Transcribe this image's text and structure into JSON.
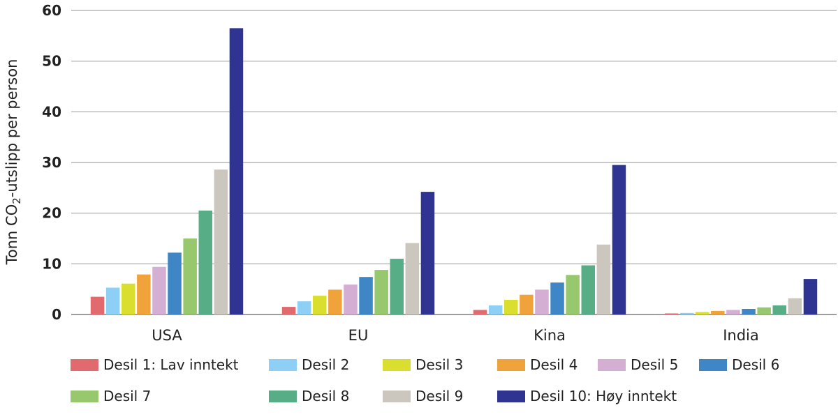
{
  "chart_data": {
    "type": "bar",
    "ylabel": "Tonn CO₂-utslipp per person",
    "ylim": [
      0,
      60
    ],
    "yticks": [
      "0",
      "10",
      "20",
      "30",
      "40",
      "50",
      "60"
    ],
    "grid": true,
    "legend_position": "bottom",
    "categories": [
      "USA",
      "EU",
      "Kina",
      "India"
    ],
    "series": [
      {
        "name": "Desil 1: Lav inntekt",
        "color": "#e06a6e",
        "values": [
          3.5,
          1.5,
          0.9,
          0.2
        ]
      },
      {
        "name": "Desil 2",
        "color": "#8ecff5",
        "values": [
          5.3,
          2.6,
          1.8,
          0.3
        ]
      },
      {
        "name": "Desil 3",
        "color": "#d9de2f",
        "values": [
          6.1,
          3.7,
          2.9,
          0.5
        ]
      },
      {
        "name": "Desil 4",
        "color": "#f1a33b",
        "values": [
          7.9,
          4.9,
          3.9,
          0.7
        ]
      },
      {
        "name": "Desil 5",
        "color": "#d4aed3",
        "values": [
          9.4,
          5.9,
          4.9,
          0.9
        ]
      },
      {
        "name": "Desil 6",
        "color": "#3f86c6",
        "values": [
          12.2,
          7.4,
          6.3,
          1.1
        ]
      },
      {
        "name": "Desil 7",
        "color": "#97c86d",
        "values": [
          15.0,
          8.8,
          7.8,
          1.4
        ]
      },
      {
        "name": "Desil 8",
        "color": "#57ad85",
        "values": [
          20.5,
          11.0,
          9.7,
          1.8
        ]
      },
      {
        "name": "Desil 9",
        "color": "#cbc7bf",
        "values": [
          28.6,
          14.1,
          13.8,
          3.2
        ]
      },
      {
        "name": "Desil 10: Høy inntekt",
        "color": "#2f3391",
        "values": [
          56.5,
          24.2,
          29.5,
          7.0
        ]
      }
    ]
  }
}
